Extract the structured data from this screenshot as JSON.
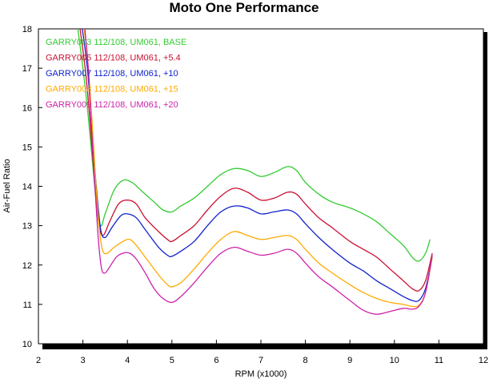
{
  "chart_data": {
    "type": "line",
    "title": "Moto One Performance",
    "xlabel": "RPM (x1000)",
    "ylabel": "Air-Fuel Ratio",
    "xlim": [
      2,
      12
    ],
    "ylim": [
      10,
      18
    ],
    "xticks": [
      "2",
      "3",
      "4",
      "5",
      "6",
      "7",
      "8",
      "9",
      "10",
      "11",
      "12"
    ],
    "yticks": [
      "10",
      "11",
      "12",
      "13",
      "14",
      "15",
      "16",
      "17",
      "18"
    ],
    "grid": false,
    "legend_position": "top-left",
    "series": [
      {
        "name": "GARRY003   112/108, UM061, BASE",
        "color": "#33cc33",
        "points": [
          [
            2.85,
            18.3
          ],
          [
            3.0,
            17.0
          ],
          [
            3.1,
            16.0
          ],
          [
            3.2,
            14.8
          ],
          [
            3.3,
            13.6
          ],
          [
            3.4,
            13.0
          ],
          [
            3.5,
            13.3
          ],
          [
            3.7,
            13.9
          ],
          [
            3.9,
            14.15
          ],
          [
            4.1,
            14.1
          ],
          [
            4.3,
            13.9
          ],
          [
            4.6,
            13.6
          ],
          [
            4.8,
            13.4
          ],
          [
            5.0,
            13.35
          ],
          [
            5.2,
            13.5
          ],
          [
            5.5,
            13.7
          ],
          [
            5.8,
            14.0
          ],
          [
            6.1,
            14.3
          ],
          [
            6.4,
            14.45
          ],
          [
            6.7,
            14.4
          ],
          [
            7.0,
            14.25
          ],
          [
            7.3,
            14.35
          ],
          [
            7.6,
            14.5
          ],
          [
            7.8,
            14.4
          ],
          [
            8.0,
            14.1
          ],
          [
            8.3,
            13.8
          ],
          [
            8.6,
            13.6
          ],
          [
            9.0,
            13.45
          ],
          [
            9.3,
            13.3
          ],
          [
            9.6,
            13.1
          ],
          [
            9.9,
            12.8
          ],
          [
            10.2,
            12.5
          ],
          [
            10.4,
            12.2
          ],
          [
            10.55,
            12.1
          ],
          [
            10.7,
            12.3
          ],
          [
            10.8,
            12.65
          ]
        ]
      },
      {
        "name": "GARRY005   112/108, UM061, +5.4",
        "color": "#cc1133",
        "points": [
          [
            2.9,
            18.3
          ],
          [
            3.05,
            17.0
          ],
          [
            3.15,
            15.8
          ],
          [
            3.25,
            14.3
          ],
          [
            3.35,
            13.1
          ],
          [
            3.45,
            12.75
          ],
          [
            3.6,
            13.1
          ],
          [
            3.8,
            13.55
          ],
          [
            4.0,
            13.65
          ],
          [
            4.2,
            13.55
          ],
          [
            4.4,
            13.2
          ],
          [
            4.7,
            12.85
          ],
          [
            4.9,
            12.65
          ],
          [
            5.0,
            12.6
          ],
          [
            5.2,
            12.75
          ],
          [
            5.5,
            13.0
          ],
          [
            5.8,
            13.4
          ],
          [
            6.1,
            13.75
          ],
          [
            6.4,
            13.95
          ],
          [
            6.7,
            13.85
          ],
          [
            7.0,
            13.65
          ],
          [
            7.3,
            13.7
          ],
          [
            7.6,
            13.85
          ],
          [
            7.8,
            13.8
          ],
          [
            8.0,
            13.55
          ],
          [
            8.3,
            13.2
          ],
          [
            8.6,
            12.95
          ],
          [
            9.0,
            12.6
          ],
          [
            9.3,
            12.4
          ],
          [
            9.6,
            12.2
          ],
          [
            9.9,
            11.9
          ],
          [
            10.2,
            11.6
          ],
          [
            10.4,
            11.4
          ],
          [
            10.55,
            11.35
          ],
          [
            10.7,
            11.6
          ],
          [
            10.85,
            12.3
          ]
        ]
      },
      {
        "name": "GARRY007   112/108, UM061, +10",
        "color": "#1122cc",
        "points": [
          [
            2.95,
            18.3
          ],
          [
            3.1,
            17.0
          ],
          [
            3.2,
            15.5
          ],
          [
            3.3,
            14.0
          ],
          [
            3.4,
            12.9
          ],
          [
            3.5,
            12.7
          ],
          [
            3.65,
            12.95
          ],
          [
            3.85,
            13.25
          ],
          [
            4.0,
            13.3
          ],
          [
            4.2,
            13.2
          ],
          [
            4.4,
            12.9
          ],
          [
            4.7,
            12.45
          ],
          [
            4.9,
            12.25
          ],
          [
            5.0,
            12.22
          ],
          [
            5.2,
            12.35
          ],
          [
            5.5,
            12.6
          ],
          [
            5.8,
            13.0
          ],
          [
            6.1,
            13.35
          ],
          [
            6.4,
            13.5
          ],
          [
            6.7,
            13.45
          ],
          [
            7.0,
            13.3
          ],
          [
            7.3,
            13.35
          ],
          [
            7.6,
            13.4
          ],
          [
            7.8,
            13.3
          ],
          [
            8.0,
            13.05
          ],
          [
            8.3,
            12.7
          ],
          [
            8.6,
            12.4
          ],
          [
            9.0,
            12.05
          ],
          [
            9.3,
            11.85
          ],
          [
            9.6,
            11.6
          ],
          [
            9.9,
            11.4
          ],
          [
            10.2,
            11.2
          ],
          [
            10.4,
            11.1
          ],
          [
            10.55,
            11.1
          ],
          [
            10.7,
            11.4
          ],
          [
            10.85,
            12.2
          ]
        ]
      },
      {
        "name": "GARRY008   112/108, UM061, +15",
        "color": "#ffaa00",
        "points": [
          [
            3.0,
            18.3
          ],
          [
            3.12,
            17.0
          ],
          [
            3.22,
            15.4
          ],
          [
            3.3,
            13.9
          ],
          [
            3.38,
            12.8
          ],
          [
            3.45,
            12.35
          ],
          [
            3.55,
            12.3
          ],
          [
            3.7,
            12.45
          ],
          [
            3.9,
            12.6
          ],
          [
            4.05,
            12.65
          ],
          [
            4.2,
            12.5
          ],
          [
            4.4,
            12.2
          ],
          [
            4.7,
            11.75
          ],
          [
            4.9,
            11.5
          ],
          [
            5.0,
            11.45
          ],
          [
            5.2,
            11.55
          ],
          [
            5.5,
            11.9
          ],
          [
            5.8,
            12.3
          ],
          [
            6.1,
            12.65
          ],
          [
            6.4,
            12.85
          ],
          [
            6.7,
            12.75
          ],
          [
            7.0,
            12.65
          ],
          [
            7.3,
            12.7
          ],
          [
            7.6,
            12.75
          ],
          [
            7.8,
            12.65
          ],
          [
            8.0,
            12.4
          ],
          [
            8.3,
            12.05
          ],
          [
            8.6,
            11.8
          ],
          [
            9.0,
            11.5
          ],
          [
            9.3,
            11.3
          ],
          [
            9.6,
            11.15
          ],
          [
            9.9,
            11.05
          ],
          [
            10.2,
            11.0
          ],
          [
            10.4,
            10.95
          ],
          [
            10.55,
            10.98
          ],
          [
            10.7,
            11.3
          ],
          [
            10.85,
            12.2
          ]
        ]
      },
      {
        "name": "GARRY009   112/108, UM061, +20",
        "color": "#cc22aa",
        "points": [
          [
            3.02,
            18.3
          ],
          [
            3.12,
            17.0
          ],
          [
            3.2,
            15.3
          ],
          [
            3.28,
            13.8
          ],
          [
            3.35,
            12.6
          ],
          [
            3.42,
            11.9
          ],
          [
            3.5,
            11.8
          ],
          [
            3.6,
            11.95
          ],
          [
            3.75,
            12.2
          ],
          [
            3.9,
            12.3
          ],
          [
            4.05,
            12.3
          ],
          [
            4.2,
            12.15
          ],
          [
            4.4,
            11.8
          ],
          [
            4.6,
            11.4
          ],
          [
            4.8,
            11.15
          ],
          [
            5.0,
            11.05
          ],
          [
            5.2,
            11.2
          ],
          [
            5.5,
            11.55
          ],
          [
            5.8,
            11.95
          ],
          [
            6.1,
            12.3
          ],
          [
            6.4,
            12.45
          ],
          [
            6.7,
            12.35
          ],
          [
            7.0,
            12.25
          ],
          [
            7.3,
            12.3
          ],
          [
            7.6,
            12.4
          ],
          [
            7.8,
            12.3
          ],
          [
            8.0,
            12.05
          ],
          [
            8.3,
            11.7
          ],
          [
            8.6,
            11.45
          ],
          [
            9.0,
            11.1
          ],
          [
            9.3,
            10.85
          ],
          [
            9.6,
            10.75
          ],
          [
            9.9,
            10.82
          ],
          [
            10.2,
            10.9
          ],
          [
            10.4,
            10.88
          ],
          [
            10.55,
            10.95
          ],
          [
            10.7,
            11.3
          ],
          [
            10.85,
            12.25
          ]
        ]
      }
    ]
  }
}
